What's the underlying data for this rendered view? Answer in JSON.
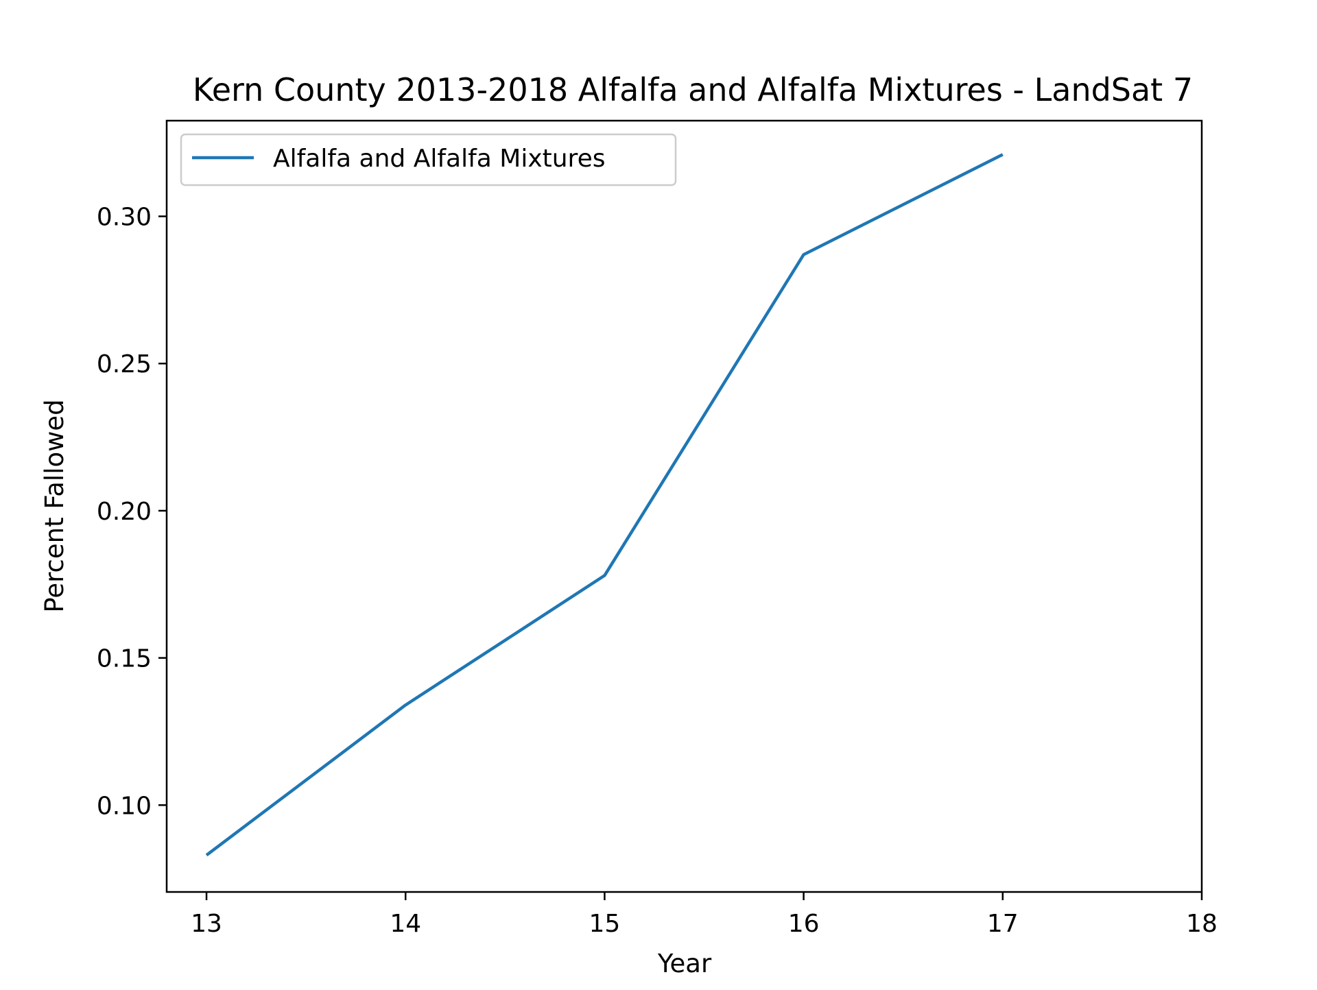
{
  "chart_data": {
    "type": "line",
    "title": "Kern County 2013-2018 Alfalfa and Alfalfa Mixtures - LandSat 7",
    "xlabel": "Year",
    "ylabel": "Percent Fallowed",
    "x": [
      13,
      14,
      15,
      16,
      17
    ],
    "xlim": [
      12.8,
      18
    ],
    "ylim": [
      0.0705,
      0.3325
    ],
    "x_ticks": [
      13,
      14,
      15,
      16,
      17,
      18
    ],
    "y_ticks": [
      0.1,
      0.15,
      0.2,
      0.25,
      0.3
    ],
    "x_tick_labels": [
      "13",
      "14",
      "15",
      "16",
      "17",
      "18"
    ],
    "y_tick_labels": [
      "0.10",
      "0.15",
      "0.20",
      "0.25",
      "0.30"
    ],
    "series": [
      {
        "name": "Alfalfa and Alfalfa Mixtures",
        "values": [
          0.083,
          0.134,
          0.178,
          0.287,
          0.321
        ],
        "color": "#1f77b4"
      }
    ],
    "legend": {
      "position": "upper-left"
    },
    "grid": false
  }
}
